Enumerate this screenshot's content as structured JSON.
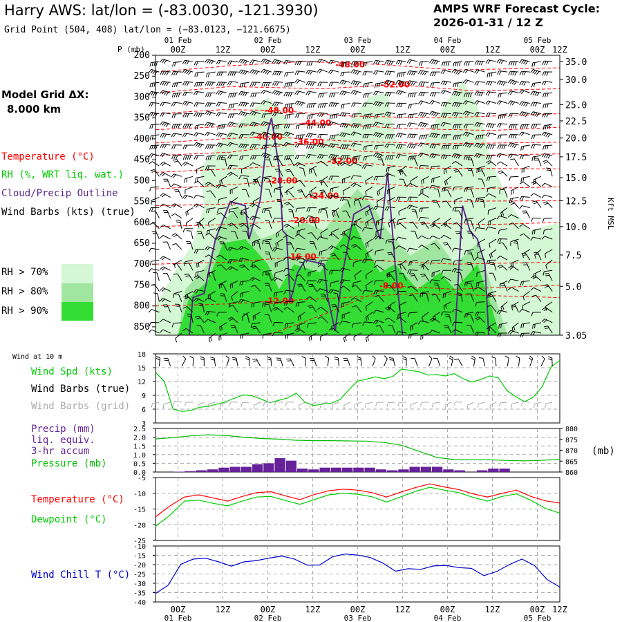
{
  "header": {
    "title": "Harry AWS:  lat/lon = (-83.0030, -121.3930)",
    "subtitle": "Grid Point (504, 408) lat/lon = (−83.0123, −121.6675)",
    "cycle_label": "AMPS WRF Forecast Cycle:",
    "cycle_value": "2026-01-31 / 12  Z",
    "grid_label": "Model Grid ΔX:",
    "grid_value": "8.000 km"
  },
  "time_axis": {
    "date_labels": [
      "01 Feb",
      "02 Feb",
      "03 Feb",
      "04 Feb",
      "05 Feb"
    ],
    "hour_labels": [
      "00Z",
      "12Z",
      "00Z",
      "12Z",
      "00Z",
      "12Z",
      "00Z",
      "12Z",
      "00Z",
      "12Z"
    ]
  },
  "legend": {
    "temperature": "Temperature (°C)",
    "rh": "RH (%, WRT liq. wat.)",
    "cloud": "Cloud/Precip Outline",
    "wind": "Wind Barbs (kts) (true)",
    "rh_levels": [
      "RH > 70%",
      "RH > 80%",
      "RH > 90%"
    ],
    "wind10_title": "Wind at 10 m",
    "wind_spd": "Wind Spd (kts)",
    "wind_barbs_true": "Wind Barbs (true)",
    "wind_barbs_grid": "Wind Barbs (grid)",
    "precip_l1": "Precip (mm)",
    "precip_l2": "liq. equiv.",
    "precip_l3": "3-hr accum",
    "pressure": "Pressure (mb)",
    "pressure_unit": "(mb)",
    "temp2": "Temperature (°C)",
    "dewpoint": "Dewpoint (°C)",
    "windchill": "Wind Chill T (°C)"
  },
  "colors": {
    "temperature": "#ff0000",
    "rh70": "#d4f7d4",
    "rh80": "#a0e6a0",
    "rh90": "#33dd33",
    "cloud": "#5a2a8a",
    "wind_speed": "#00cc00",
    "grid_barb": "#aaaaaa",
    "precip": "#662299",
    "pressure": "#00bb00",
    "dewpoint": "#00cc00",
    "windchill": "#0000cc"
  },
  "chart_data": [
    {
      "type": "area",
      "xlabel": "",
      "ylabel": "P (mb)",
      "y2label": "Kft MSL",
      "x_range_hours": [
        0,
        108
      ],
      "ylim": [
        870,
        200
      ],
      "y_ticks": [
        200,
        250,
        300,
        350,
        400,
        450,
        500,
        550,
        600,
        650,
        700,
        750,
        800,
        850
      ],
      "y2_ticks": [
        "35.0",
        "30.0",
        "25.0",
        "22.5",
        "20.0",
        "17.5",
        "15.0",
        "12.5",
        "10.0",
        "7.5",
        "5.0",
        "3.05"
      ],
      "y2_ticks_at_mb": [
        215,
        258,
        318,
        357,
        398,
        443,
        493,
        548,
        610,
        678,
        753,
        870
      ],
      "temperature_contours": [
        {
          "label": "-48.00",
          "x": 52,
          "p": 222
        },
        {
          "label": "-52.00",
          "x": 64,
          "p": 270
        },
        {
          "label": "-48.00",
          "x": 33,
          "p": 332
        },
        {
          "label": "-44.00",
          "x": 43,
          "p": 362
        },
        {
          "label": "-40.00",
          "x": 30,
          "p": 395
        },
        {
          "label": "-36.00",
          "x": 41,
          "p": 408
        },
        {
          "label": "-32.00",
          "x": 50,
          "p": 453
        },
        {
          "label": "-28.00",
          "x": 34,
          "p": 500
        },
        {
          "label": "-24.00",
          "x": 45,
          "p": 537
        },
        {
          "label": "-20.00",
          "x": 40,
          "p": 595
        },
        {
          "label": "-16.00",
          "x": 39,
          "p": 682
        },
        {
          "label": "-12.00",
          "x": 33,
          "p": 788
        },
        {
          "label": "-8.00",
          "x": 63,
          "p": 752
        }
      ]
    },
    {
      "type": "line",
      "xlabel": "",
      "ylabel": "",
      "ylim": [
        3,
        18
      ],
      "y_ticks": [
        3,
        6,
        9,
        12,
        15,
        18
      ],
      "series": [
        {
          "values": [
            14.0,
            12.0,
            6.0,
            5.5,
            5.7,
            6.4,
            6.6,
            7.1,
            7.6,
            8.4,
            9.1,
            8.9,
            8.2,
            7.4,
            7.9,
            8.4,
            9.5,
            7.5,
            6.8,
            7.1,
            7.3,
            8.1,
            10.2,
            12.1,
            12.5,
            13.0,
            12.6,
            13.1,
            14.7,
            14.4,
            14.1,
            13.4,
            13.5,
            13.2,
            13.7,
            12.6,
            11.9,
            12.4,
            13.2,
            12.8,
            10.0,
            8.7,
            7.6,
            8.6,
            10.9,
            15.1,
            16.6
          ]
        }
      ]
    },
    {
      "type": "bar",
      "xlabel": "",
      "ylabel": "",
      "ylim": [
        0,
        2.5
      ],
      "y_ticks": [
        "0.0",
        "0.5",
        "1.0",
        "1.5",
        "2.0",
        "2.5"
      ],
      "y2_ticks": [
        860,
        865,
        870,
        875,
        880
      ],
      "y2lim": [
        860,
        880
      ],
      "series": [
        {
          "values": [
            0,
            0.02,
            0.05,
            0.1,
            0.15,
            0.25,
            0.3,
            0.3,
            0.45,
            0.5,
            0.8,
            0.65,
            0.2,
            0.15,
            0.25,
            0.25,
            0.25,
            0.25,
            0.25,
            0.15,
            0.1,
            0.15,
            0.3,
            0.3,
            0.3,
            0.15,
            0.1,
            0,
            0.1,
            0.2,
            0.2,
            0,
            0,
            0,
            0,
            0,
            0,
            0
          ]
        },
        {
          "values": [
            875.2,
            875.8,
            876.6,
            877.1,
            876.8,
            876.0,
            875.4,
            875.1,
            874.6,
            874.4,
            874.4,
            874.3,
            874.2,
            873.6,
            872.3,
            869.5,
            866.7,
            865.7,
            865.6,
            865.6,
            865.3,
            865.1,
            865.4,
            865.8
          ]
        }
      ]
    },
    {
      "type": "line",
      "xlabel": "",
      "ylabel": "",
      "ylim": [
        -25,
        -5
      ],
      "y_ticks": [
        -5,
        -10,
        -15,
        -20,
        -25
      ],
      "series": [
        {
          "values": [
            -17.5,
            -14.0,
            -11.2,
            -10.5,
            -11.5,
            -12.5,
            -11.0,
            -9.8,
            -9.5,
            -10.8,
            -12.0,
            -10.4,
            -9.2,
            -8.7,
            -9.0,
            -9.8,
            -11.2,
            -9.6,
            -8.2,
            -7.0,
            -8.0,
            -8.8,
            -10.2,
            -11.2,
            -10.0,
            -9.0,
            -11.0,
            -12.4,
            -13.1
          ]
        },
        {
          "values": [
            -20.5,
            -17.0,
            -12.5,
            -12.2,
            -13.2,
            -14.0,
            -12.5,
            -11.2,
            -11.0,
            -12.3,
            -13.5,
            -12.0,
            -10.5,
            -10.0,
            -10.3,
            -11.1,
            -12.8,
            -11.1,
            -9.4,
            -8.1,
            -9.0,
            -9.8,
            -11.3,
            -12.5,
            -11.0,
            -10.2,
            -12.2,
            -14.8,
            -16.3
          ]
        }
      ]
    },
    {
      "type": "line",
      "xlabel": "",
      "ylabel": "",
      "ylim": [
        -40,
        -10
      ],
      "y_ticks": [
        -10,
        -15,
        -20,
        -25,
        -30,
        -35,
        -40
      ],
      "series": [
        {
          "values": [
            -35.5,
            -31.0,
            -19.8,
            -17.0,
            -16.6,
            -18.5,
            -20.8,
            -18.5,
            -17.8,
            -16.5,
            -15.4,
            -17.0,
            -20.3,
            -20.2,
            -15.8,
            -14.3,
            -14.9,
            -16.2,
            -19.2,
            -23.5,
            -22.2,
            -22.5,
            -20.7,
            -20.4,
            -21.6,
            -22.0,
            -25.9,
            -23.7,
            -20.0,
            -17.0,
            -20.5,
            -28.0,
            -32.0
          ]
        }
      ]
    }
  ]
}
